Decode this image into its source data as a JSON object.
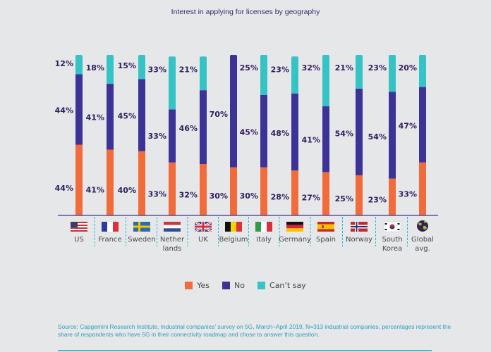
{
  "chart_data": {
    "type": "bar",
    "stacked": true,
    "title": "Interest in applying for licenses by geography",
    "xlabel": "",
    "ylabel": "",
    "ylim": [
      0,
      100
    ],
    "grid": false,
    "legend_position": "bottom-center",
    "categories": [
      "US",
      "France",
      "Sweden",
      "Nether lands",
      "UK",
      "Belgium",
      "Italy",
      "Germany",
      "Spain",
      "Norway",
      "South Korea",
      "Global avg."
    ],
    "category_lines": [
      [
        "US"
      ],
      [
        "France"
      ],
      [
        "Sweden"
      ],
      [
        "Nether",
        "lands"
      ],
      [
        "UK"
      ],
      [
        "Belgium"
      ],
      [
        "Italy"
      ],
      [
        "Germany"
      ],
      [
        "Spain"
      ],
      [
        "Norway"
      ],
      [
        "South",
        "Korea"
      ],
      [
        "Global",
        "avg."
      ]
    ],
    "category_icons": [
      "flag-us-icon",
      "flag-france-icon",
      "flag-sweden-icon",
      "flag-netherlands-icon",
      "flag-uk-icon",
      "flag-belgium-icon",
      "flag-italy-icon",
      "flag-germany-icon",
      "flag-spain-icon",
      "flag-norway-icon",
      "flag-south-korea-icon",
      "globe-icon"
    ],
    "series": [
      {
        "name": "Yes",
        "color": "#f26b3a",
        "values": [
          44,
          41,
          40,
          33,
          32,
          30,
          30,
          28,
          27,
          25,
          23,
          33
        ]
      },
      {
        "name": "No",
        "color": "#3d3397",
        "values": [
          44,
          41,
          45,
          33,
          46,
          70,
          45,
          48,
          41,
          54,
          54,
          47
        ]
      },
      {
        "name": "Can't say",
        "color": "#36c3c6",
        "values": [
          12,
          18,
          15,
          33,
          21,
          0,
          25,
          23,
          32,
          21,
          23,
          20
        ]
      }
    ],
    "value_suffix": "%"
  },
  "legend": [
    {
      "label": "Yes",
      "color": "#f26b3a"
    },
    {
      "label": "No",
      "color": "#3d3397"
    },
    {
      "label": "Can’t say",
      "color": "#36c3c6"
    }
  ],
  "source_text": "Source: Capgemini Research Institute, Industrial companies’ survey on 5G, March–April 2019, N=313 industrial companies, percentages represent the share of respondents who have 5G in their connectivity roadmap and chose to answer this question."
}
